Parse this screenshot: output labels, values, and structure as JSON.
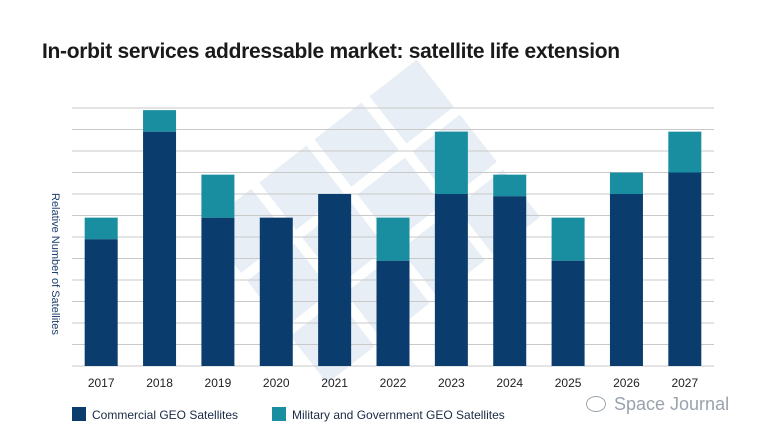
{
  "title": "In-orbit services addressable market: satellite life extension",
  "watermark_text": "Space Journal",
  "colors": {
    "commercial": "#0a3d6e",
    "military": "#198ea0",
    "grid": "#c9c9c9",
    "axis_text": "#222222"
  },
  "chart_data": {
    "type": "bar",
    "stacked": true,
    "categories": [
      "2017",
      "2018",
      "2019",
      "2020",
      "2021",
      "2022",
      "2023",
      "2024",
      "2025",
      "2026",
      "2027"
    ],
    "series": [
      {
        "name": "Commercial GEO Satellites",
        "values": [
          5.9,
          10.9,
          6.9,
          6.9,
          8.0,
          4.9,
          8.0,
          7.9,
          4.9,
          8.0,
          9.0
        ]
      },
      {
        "name": "Military and Government GEO Satellites",
        "values": [
          1.0,
          1.0,
          2.0,
          0,
          0,
          2.0,
          2.9,
          1.0,
          2.0,
          1.0,
          1.9
        ]
      }
    ],
    "ylabel": "Relative Number of Satellites",
    "ylim": [
      0,
      12
    ],
    "yticks": [
      0,
      1,
      2,
      3,
      4,
      5,
      6,
      7,
      8,
      9,
      10,
      11,
      12
    ],
    "ytick_labels_shown": false,
    "grid": true,
    "legend_position": "bottom-left"
  }
}
